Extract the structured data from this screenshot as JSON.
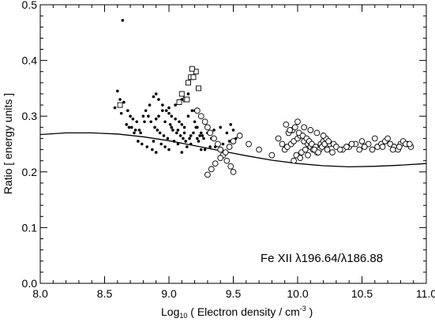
{
  "chart_data": {
    "type": "scatter",
    "xlabel_main": "Log",
    "xlabel_sub": "10",
    "xlabel_rest": " ( Electron density / cm",
    "xlabel_sup": "-3",
    "xlabel_end": " )",
    "ylabel": "Ratio [ energy units ]",
    "annotation": "Fe XII λ196.64/λ186.88",
    "xlim": [
      8.0,
      11.0
    ],
    "ylim": [
      0.0,
      0.5
    ],
    "x_ticks": [
      "8.0",
      "8.5",
      "9.0",
      "9.5",
      "10.0",
      "10.5",
      "11.0"
    ],
    "y_ticks": [
      "0.0",
      "0.1",
      "0.2",
      "0.3",
      "0.4",
      "0.5"
    ],
    "grid": false,
    "colors": {
      "ink": "#000000",
      "background": "#ffffff"
    },
    "series": [
      {
        "marker": "filled-dot",
        "x": [
          8.64,
          8.6,
          8.62,
          8.65,
          8.68,
          8.7,
          8.72,
          8.75,
          8.58,
          8.63,
          8.67,
          8.71,
          8.74,
          8.78,
          8.8,
          8.82,
          8.85,
          8.88,
          8.9,
          8.92,
          8.95,
          8.98,
          9.0,
          9.02,
          9.05,
          9.08,
          9.1,
          9.12,
          9.15,
          9.18,
          9.2,
          9.22,
          9.25,
          8.86,
          8.89,
          8.91,
          8.93,
          8.96,
          8.99,
          9.01,
          9.03,
          9.06,
          9.09,
          9.11,
          9.13,
          9.16,
          9.19,
          9.21,
          9.24,
          9.27,
          8.76,
          8.79,
          8.83,
          8.87,
          8.94,
          8.97,
          9.04,
          9.07,
          9.14,
          9.17,
          9.23,
          9.26,
          9.3,
          9.35,
          9.4,
          9.45,
          9.48,
          9.5,
          9.33,
          9.38,
          8.69,
          8.73,
          8.81,
          8.84,
          8.9,
          8.95,
          9.0,
          9.05,
          9.1,
          9.15,
          9.2,
          8.92,
          8.97,
          9.02,
          9.07,
          9.12,
          9.17,
          9.22,
          8.88,
          9.28,
          9.32,
          9.42,
          9.47,
          9.52,
          8.77,
          8.9,
          9.0,
          9.1,
          9.25,
          9.36
        ],
        "y": [
          0.472,
          0.345,
          0.33,
          0.325,
          0.31,
          0.3,
          0.295,
          0.29,
          0.315,
          0.305,
          0.285,
          0.28,
          0.275,
          0.27,
          0.3,
          0.31,
          0.32,
          0.335,
          0.34,
          0.33,
          0.32,
          0.31,
          0.305,
          0.3,
          0.295,
          0.29,
          0.285,
          0.28,
          0.3,
          0.31,
          0.29,
          0.28,
          0.27,
          0.29,
          0.28,
          0.275,
          0.27,
          0.265,
          0.26,
          0.285,
          0.275,
          0.27,
          0.265,
          0.26,
          0.255,
          0.26,
          0.27,
          0.28,
          0.265,
          0.26,
          0.255,
          0.25,
          0.245,
          0.24,
          0.25,
          0.245,
          0.255,
          0.25,
          0.245,
          0.25,
          0.255,
          0.265,
          0.27,
          0.275,
          0.28,
          0.27,
          0.285,
          0.275,
          0.26,
          0.25,
          0.28,
          0.27,
          0.29,
          0.3,
          0.295,
          0.31,
          0.315,
          0.32,
          0.33,
          0.34,
          0.31,
          0.3,
          0.29,
          0.28,
          0.275,
          0.27,
          0.265,
          0.26,
          0.255,
          0.24,
          0.245,
          0.25,
          0.255,
          0.26,
          0.275,
          0.235,
          0.24,
          0.235,
          0.24,
          0.245
        ]
      },
      {
        "marker": "open-circle",
        "x": [
          9.22,
          9.25,
          9.28,
          9.3,
          9.32,
          9.35,
          9.38,
          9.4,
          9.42,
          9.45,
          9.48,
          9.5,
          9.3,
          9.33,
          9.36,
          9.4,
          9.44,
          9.47,
          9.5,
          9.55,
          9.62,
          9.7,
          9.8,
          9.85,
          9.88,
          9.9,
          9.92,
          9.95,
          9.97,
          10.0,
          10.02,
          10.05,
          10.08,
          10.1,
          10.12,
          10.15,
          10.18,
          10.2,
          10.22,
          10.25,
          9.93,
          9.96,
          9.98,
          10.01,
          10.04,
          10.07,
          10.09,
          10.11,
          10.14,
          10.17,
          10.19,
          10.21,
          10.24,
          10.28,
          10.3,
          10.35,
          10.4,
          10.45,
          10.5,
          10.55,
          10.6,
          10.62,
          10.65,
          10.68,
          10.7,
          10.72,
          10.75,
          10.78,
          10.8,
          10.82,
          10.85,
          10.88,
          9.99,
          10.03,
          10.06,
          10.13,
          10.16,
          10.23,
          10.27,
          10.33,
          10.38,
          10.42,
          10.48,
          10.52,
          10.58,
          10.66,
          10.74,
          10.79,
          10.84,
          10.87,
          9.91,
          9.94,
          10.0,
          10.05,
          10.1,
          10.15,
          10.2,
          9.97,
          10.02,
          10.08
        ],
        "y": [
          0.31,
          0.3,
          0.29,
          0.28,
          0.27,
          0.26,
          0.25,
          0.24,
          0.23,
          0.22,
          0.21,
          0.2,
          0.195,
          0.205,
          0.215,
          0.225,
          0.235,
          0.245,
          0.255,
          0.265,
          0.25,
          0.24,
          0.23,
          0.26,
          0.25,
          0.24,
          0.245,
          0.25,
          0.255,
          0.26,
          0.265,
          0.255,
          0.25,
          0.245,
          0.24,
          0.235,
          0.25,
          0.255,
          0.26,
          0.25,
          0.27,
          0.275,
          0.28,
          0.27,
          0.265,
          0.26,
          0.255,
          0.25,
          0.245,
          0.24,
          0.245,
          0.25,
          0.255,
          0.25,
          0.245,
          0.24,
          0.245,
          0.25,
          0.255,
          0.25,
          0.26,
          0.245,
          0.25,
          0.255,
          0.26,
          0.25,
          0.245,
          0.24,
          0.25,
          0.255,
          0.25,
          0.245,
          0.23,
          0.235,
          0.24,
          0.24,
          0.235,
          0.24,
          0.235,
          0.24,
          0.245,
          0.25,
          0.24,
          0.245,
          0.24,
          0.245,
          0.24,
          0.245,
          0.25,
          0.25,
          0.285,
          0.275,
          0.29,
          0.28,
          0.275,
          0.27,
          0.265,
          0.22,
          0.225,
          0.23
        ]
      },
      {
        "marker": "open-square",
        "x": [
          8.62,
          9.08,
          9.1,
          9.13,
          9.15,
          9.17,
          9.19,
          9.21,
          9.23,
          9.14,
          9.18
        ],
        "y": [
          0.32,
          0.325,
          0.34,
          0.33,
          0.36,
          0.37,
          0.37,
          0.38,
          0.35,
          0.33,
          0.385
        ]
      }
    ],
    "curve": {
      "x": [
        8.0,
        8.2,
        8.4,
        8.6,
        8.8,
        9.0,
        9.2,
        9.4,
        9.6,
        9.8,
        10.0,
        10.2,
        10.4,
        10.6,
        10.8,
        11.0
      ],
      "y": [
        0.267,
        0.27,
        0.27,
        0.268,
        0.263,
        0.256,
        0.247,
        0.238,
        0.229,
        0.221,
        0.215,
        0.211,
        0.209,
        0.21,
        0.212,
        0.215
      ]
    }
  }
}
